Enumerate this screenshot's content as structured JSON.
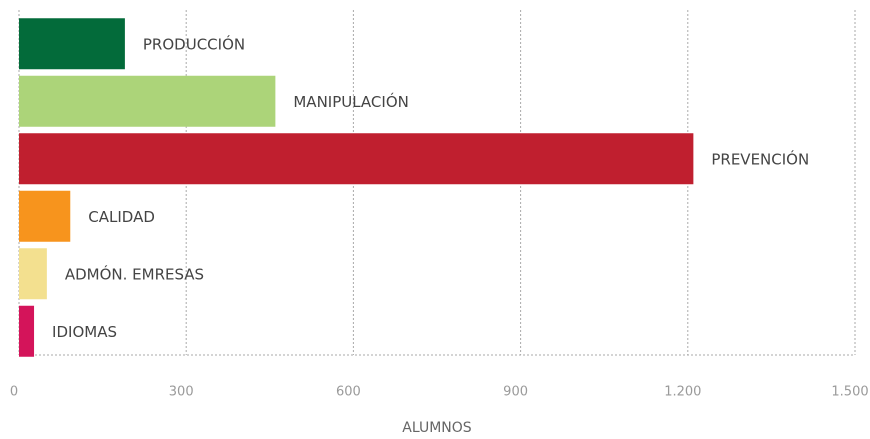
{
  "chart_data": {
    "type": "hbar",
    "categories": [
      "PRODUCCIÓN",
      "MANIPULACIÓN",
      "PREVENCIÓN",
      "CALIDAD",
      "ADMÓN. EMRESAS",
      "IDIOMAS"
    ],
    "values": [
      190,
      460,
      1210,
      92,
      50,
      27
    ],
    "colors": [
      "#036b3a",
      "#acd479",
      "#c01f2f",
      "#f7941d",
      "#f3e08f",
      "#d4145a"
    ],
    "xlim": [
      0,
      1500
    ],
    "xticks": [
      0,
      300,
      600,
      900,
      {
        "value": 1200,
        "label": "1.200"
      },
      {
        "value": 1500,
        "label": "1.500"
      }
    ],
    "xlabel": "ALUMNOS",
    "grid": true
  }
}
